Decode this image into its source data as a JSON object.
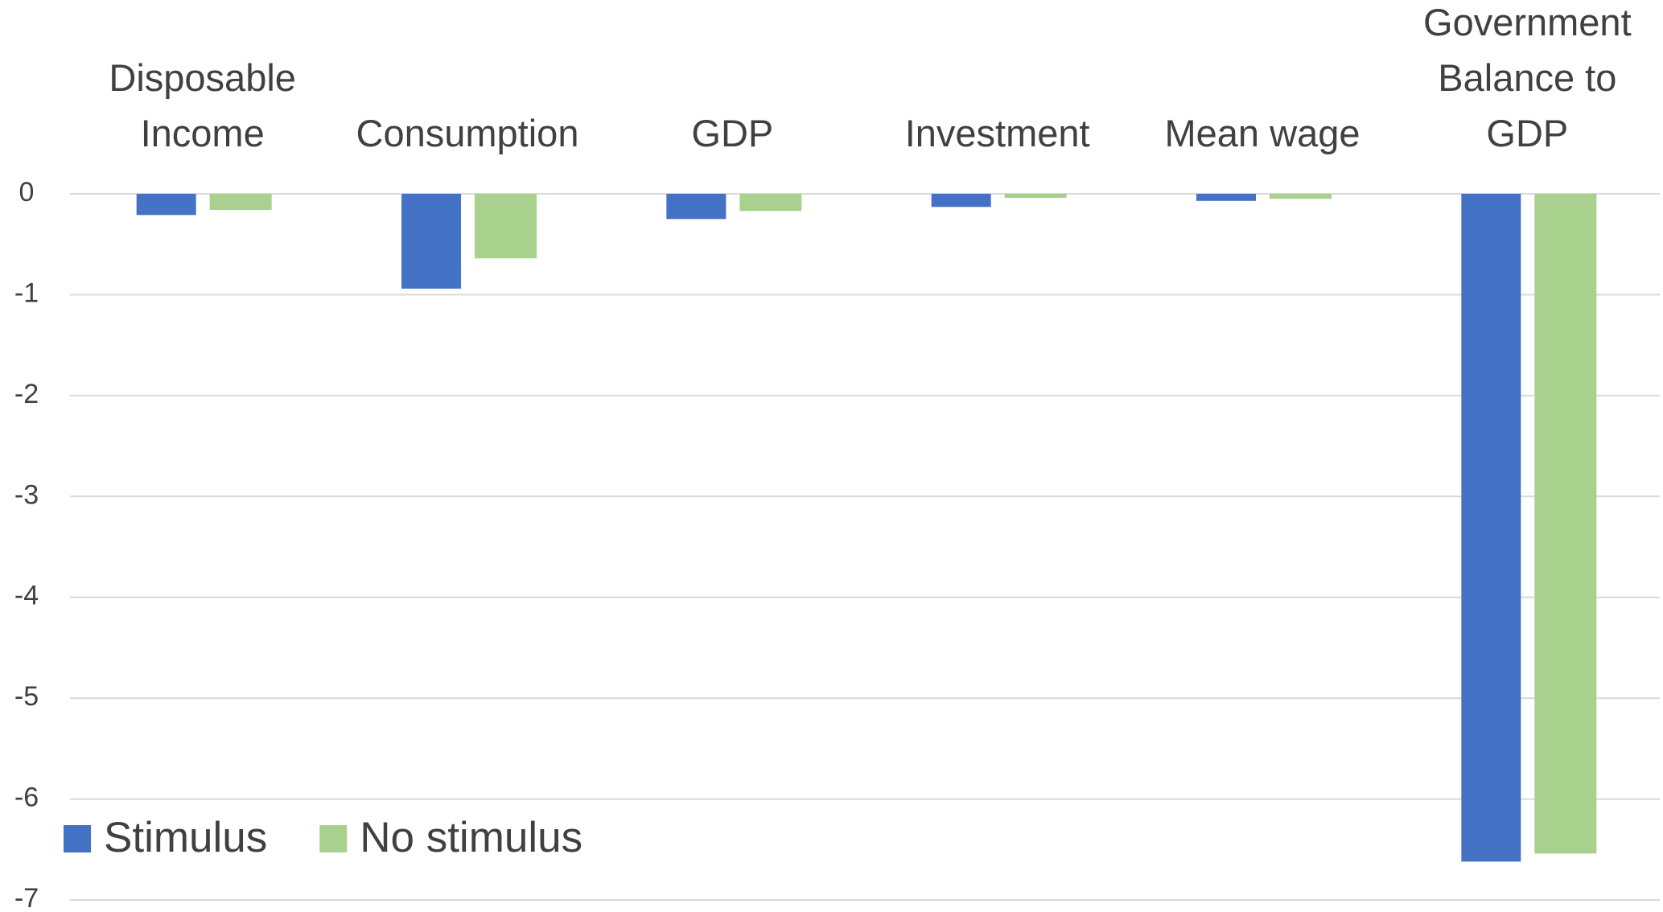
{
  "chart_data": {
    "type": "bar",
    "categories": [
      "Disposable Income",
      "Consumption",
      "GDP",
      "Investment",
      "Mean wage",
      "Government Balance to GDP"
    ],
    "series": [
      {
        "name": "Stimulus",
        "color": "#4472c4",
        "values": [
          -0.21,
          -0.94,
          -0.25,
          -0.13,
          -0.07,
          -6.62
        ]
      },
      {
        "name": "No stimulus",
        "color": "#a9d18e",
        "values": [
          -0.16,
          -0.64,
          -0.17,
          -0.04,
          -0.05,
          -6.54
        ]
      }
    ],
    "ylim": [
      -7,
      0
    ],
    "yticks": [
      0,
      -1,
      -2,
      -3,
      -4,
      -5,
      -6,
      -7
    ],
    "grid": true,
    "legend": "bottom-left"
  }
}
